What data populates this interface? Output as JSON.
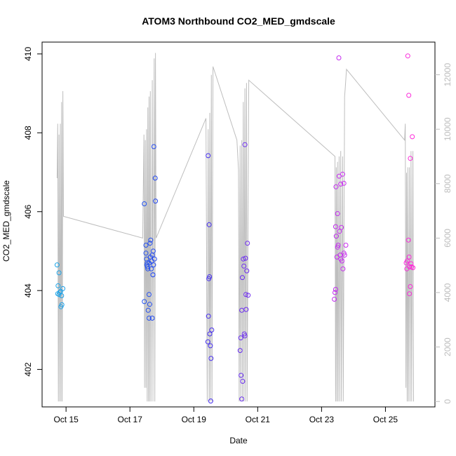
{
  "chart_data": {
    "type": "scatter",
    "title": "ATOM3 Northbound CO2_MED_gmdscale",
    "xlabel": "Date",
    "ylabel": "CO2_MED_gmdscale",
    "xlim": [
      14.25,
      26.55
    ],
    "ylim": [
      401.05,
      410.3
    ],
    "y2lim": [
      -200,
      13200
    ],
    "x_ticks": [
      15,
      17,
      19,
      21,
      23,
      25
    ],
    "x_tick_labels": [
      "Oct 15",
      "Oct 17",
      "Oct 19",
      "Oct 21",
      "Oct 23",
      "Oct 25"
    ],
    "y_ticks": [
      402,
      404,
      406,
      408,
      410
    ],
    "y_tick_labels": [
      "402",
      "404",
      "406",
      "408",
      "410"
    ],
    "y2_ticks": [
      0,
      2000,
      4000,
      6000,
      8000,
      10000,
      12000
    ],
    "y2_tick_labels": [
      "0",
      "2000",
      "4000",
      "6000",
      "8000",
      "10000",
      "12000"
    ],
    "colors": {
      "altitude_line": "#bebebe",
      "point_gradient": [
        "#1ea7e8",
        "#1a5cf0",
        "#3a2ef0",
        "#8a2cf0",
        "#c82cf0",
        "#ff2ad8"
      ]
    },
    "points": [
      {
        "x": 14.72,
        "y": 404.65
      },
      {
        "x": 14.75,
        "y": 404.12
      },
      {
        "x": 14.78,
        "y": 404.45
      },
      {
        "x": 14.74,
        "y": 403.92
      },
      {
        "x": 14.8,
        "y": 403.95
      },
      {
        "x": 14.83,
        "y": 403.98
      },
      {
        "x": 14.86,
        "y": 403.87
      },
      {
        "x": 14.9,
        "y": 404.05
      },
      {
        "x": 14.87,
        "y": 403.64
      },
      {
        "x": 14.84,
        "y": 403.59
      },
      {
        "x": 14.78,
        "y": 403.9
      },
      {
        "x": 17.45,
        "y": 406.2
      },
      {
        "x": 17.45,
        "y": 403.72
      },
      {
        "x": 17.5,
        "y": 405.15
      },
      {
        "x": 17.5,
        "y": 404.95
      },
      {
        "x": 17.52,
        "y": 404.8
      },
      {
        "x": 17.54,
        "y": 404.7
      },
      {
        "x": 17.55,
        "y": 404.6
      },
      {
        "x": 17.56,
        "y": 404.55
      },
      {
        "x": 17.53,
        "y": 404.65
      },
      {
        "x": 17.57,
        "y": 403.5
      },
      {
        "x": 17.6,
        "y": 403.9
      },
      {
        "x": 17.6,
        "y": 403.3
      },
      {
        "x": 17.62,
        "y": 403.65
      },
      {
        "x": 17.63,
        "y": 405.2
      },
      {
        "x": 17.65,
        "y": 405.28
      },
      {
        "x": 17.64,
        "y": 404.85
      },
      {
        "x": 17.67,
        "y": 404.55
      },
      {
        "x": 17.68,
        "y": 404.75
      },
      {
        "x": 17.7,
        "y": 404.9
      },
      {
        "x": 17.7,
        "y": 403.3
      },
      {
        "x": 17.72,
        "y": 404.4
      },
      {
        "x": 17.73,
        "y": 405.0
      },
      {
        "x": 17.74,
        "y": 404.65
      },
      {
        "x": 17.75,
        "y": 407.65
      },
      {
        "x": 17.77,
        "y": 404.8
      },
      {
        "x": 17.79,
        "y": 406.85
      },
      {
        "x": 17.8,
        "y": 406.27
      },
      {
        "x": 17.72,
        "y": 404.4
      },
      {
        "x": 17.6,
        "y": 404.7
      },
      {
        "x": 19.45,
        "y": 407.42
      },
      {
        "x": 19.47,
        "y": 404.3
      },
      {
        "x": 19.48,
        "y": 405.67
      },
      {
        "x": 19.49,
        "y": 404.35
      },
      {
        "x": 19.46,
        "y": 403.35
      },
      {
        "x": 19.44,
        "y": 402.7
      },
      {
        "x": 19.5,
        "y": 402.9
      },
      {
        "x": 19.52,
        "y": 402.6
      },
      {
        "x": 19.54,
        "y": 402.28
      },
      {
        "x": 19.56,
        "y": 403.0
      },
      {
        "x": 19.53,
        "y": 401.2
      },
      {
        "x": 20.45,
        "y": 402.48
      },
      {
        "x": 20.47,
        "y": 402.8
      },
      {
        "x": 20.48,
        "y": 401.85
      },
      {
        "x": 20.5,
        "y": 401.25
      },
      {
        "x": 20.5,
        "y": 403.5
      },
      {
        "x": 20.52,
        "y": 404.33
      },
      {
        "x": 20.53,
        "y": 401.7
      },
      {
        "x": 20.55,
        "y": 404.8
      },
      {
        "x": 20.57,
        "y": 404.62
      },
      {
        "x": 20.58,
        "y": 402.9
      },
      {
        "x": 20.6,
        "y": 402.85
      },
      {
        "x": 20.6,
        "y": 407.7
      },
      {
        "x": 20.62,
        "y": 404.82
      },
      {
        "x": 20.63,
        "y": 403.9
      },
      {
        "x": 20.64,
        "y": 403.52
      },
      {
        "x": 20.66,
        "y": 404.5
      },
      {
        "x": 20.68,
        "y": 405.2
      },
      {
        "x": 20.7,
        "y": 403.88
      },
      {
        "x": 23.4,
        "y": 403.78
      },
      {
        "x": 23.42,
        "y": 403.95
      },
      {
        "x": 23.44,
        "y": 404.03
      },
      {
        "x": 23.44,
        "y": 405.62
      },
      {
        "x": 23.45,
        "y": 406.63
      },
      {
        "x": 23.46,
        "y": 405.38
      },
      {
        "x": 23.48,
        "y": 404.85
      },
      {
        "x": 23.5,
        "y": 405.1
      },
      {
        "x": 23.5,
        "y": 405.95
      },
      {
        "x": 23.52,
        "y": 405.15
      },
      {
        "x": 23.54,
        "y": 409.9
      },
      {
        "x": 23.55,
        "y": 406.9
      },
      {
        "x": 23.56,
        "y": 405.5
      },
      {
        "x": 23.58,
        "y": 404.9
      },
      {
        "x": 23.6,
        "y": 404.8
      },
      {
        "x": 23.6,
        "y": 406.7
      },
      {
        "x": 23.62,
        "y": 405.6
      },
      {
        "x": 23.64,
        "y": 404.75
      },
      {
        "x": 23.66,
        "y": 406.95
      },
      {
        "x": 23.67,
        "y": 404.55
      },
      {
        "x": 23.7,
        "y": 404.95
      },
      {
        "x": 23.7,
        "y": 406.72
      },
      {
        "x": 23.72,
        "y": 404.9
      },
      {
        "x": 23.76,
        "y": 405.15
      },
      {
        "x": 25.65,
        "y": 404.7
      },
      {
        "x": 25.67,
        "y": 404.55
      },
      {
        "x": 25.68,
        "y": 404.75
      },
      {
        "x": 25.7,
        "y": 409.95
      },
      {
        "x": 25.72,
        "y": 405.28
      },
      {
        "x": 25.73,
        "y": 408.95
      },
      {
        "x": 25.74,
        "y": 404.85
      },
      {
        "x": 25.75,
        "y": 403.92
      },
      {
        "x": 25.76,
        "y": 404.6
      },
      {
        "x": 25.78,
        "y": 407.35
      },
      {
        "x": 25.78,
        "y": 404.1
      },
      {
        "x": 25.8,
        "y": 404.68
      },
      {
        "x": 25.82,
        "y": 404.6
      },
      {
        "x": 25.84,
        "y": 407.9
      },
      {
        "x": 25.86,
        "y": 404.58
      }
    ],
    "altitude": [
      {
        "x": 14.72,
        "y": 8200
      },
      {
        "x": 14.74,
        "y": 10200
      },
      {
        "x": 14.76,
        "y": 0
      },
      {
        "x": 14.78,
        "y": 9800
      },
      {
        "x": 14.8,
        "y": 0
      },
      {
        "x": 14.82,
        "y": 10200
      },
      {
        "x": 14.84,
        "y": 0
      },
      {
        "x": 14.86,
        "y": 11000
      },
      {
        "x": 14.88,
        "y": 0
      },
      {
        "x": 14.9,
        "y": 11400
      },
      {
        "x": 14.92,
        "y": 6800
      },
      {
        "x": 17.4,
        "y": 6000
      },
      {
        "x": 17.44,
        "y": 9800
      },
      {
        "x": 17.46,
        "y": 500
      },
      {
        "x": 17.48,
        "y": 9600
      },
      {
        "x": 17.5,
        "y": 500
      },
      {
        "x": 17.52,
        "y": 10000
      },
      {
        "x": 17.54,
        "y": 0
      },
      {
        "x": 17.56,
        "y": 10800
      },
      {
        "x": 17.58,
        "y": 0
      },
      {
        "x": 17.6,
        "y": 11200
      },
      {
        "x": 17.62,
        "y": 0
      },
      {
        "x": 17.64,
        "y": 11400
      },
      {
        "x": 17.66,
        "y": 0
      },
      {
        "x": 17.7,
        "y": 11800
      },
      {
        "x": 17.72,
        "y": 0
      },
      {
        "x": 17.76,
        "y": 12600
      },
      {
        "x": 17.78,
        "y": 0
      },
      {
        "x": 17.8,
        "y": 12800
      },
      {
        "x": 17.82,
        "y": 6000
      },
      {
        "x": 19.38,
        "y": 10400
      },
      {
        "x": 19.42,
        "y": 0
      },
      {
        "x": 19.45,
        "y": 10000
      },
      {
        "x": 19.48,
        "y": 0
      },
      {
        "x": 19.5,
        "y": 10600
      },
      {
        "x": 19.52,
        "y": 0
      },
      {
        "x": 19.55,
        "y": 12000
      },
      {
        "x": 19.57,
        "y": 0
      },
      {
        "x": 19.6,
        "y": 12300
      },
      {
        "x": 20.35,
        "y": 9600
      },
      {
        "x": 20.4,
        "y": 8500
      },
      {
        "x": 20.42,
        "y": 0
      },
      {
        "x": 20.45,
        "y": 9400
      },
      {
        "x": 20.47,
        "y": 0
      },
      {
        "x": 20.5,
        "y": 9600
      },
      {
        "x": 20.52,
        "y": 0
      },
      {
        "x": 20.55,
        "y": 11000
      },
      {
        "x": 20.57,
        "y": 0
      },
      {
        "x": 20.6,
        "y": 11500
      },
      {
        "x": 20.62,
        "y": 0
      },
      {
        "x": 20.65,
        "y": 11700
      },
      {
        "x": 20.67,
        "y": 0
      },
      {
        "x": 20.72,
        "y": 11800
      },
      {
        "x": 23.42,
        "y": 9000
      },
      {
        "x": 23.44,
        "y": 0
      },
      {
        "x": 23.46,
        "y": 8600
      },
      {
        "x": 23.48,
        "y": 0
      },
      {
        "x": 23.5,
        "y": 8800
      },
      {
        "x": 23.52,
        "y": 0
      },
      {
        "x": 23.55,
        "y": 9000
      },
      {
        "x": 23.57,
        "y": 0
      },
      {
        "x": 23.6,
        "y": 9200
      },
      {
        "x": 23.62,
        "y": 0
      },
      {
        "x": 23.66,
        "y": 9000
      },
      {
        "x": 23.68,
        "y": 0
      },
      {
        "x": 23.72,
        "y": 11200
      },
      {
        "x": 23.74,
        "y": 11500
      },
      {
        "x": 23.78,
        "y": 12200
      },
      {
        "x": 25.6,
        "y": 9600
      },
      {
        "x": 25.62,
        "y": 10200
      },
      {
        "x": 25.64,
        "y": 500
      },
      {
        "x": 25.66,
        "y": 8400
      },
      {
        "x": 25.68,
        "y": 0
      },
      {
        "x": 25.7,
        "y": 8600
      },
      {
        "x": 25.72,
        "y": 0
      },
      {
        "x": 25.75,
        "y": 8600
      },
      {
        "x": 25.77,
        "y": 0
      },
      {
        "x": 25.8,
        "y": 9200
      },
      {
        "x": 25.82,
        "y": 0
      },
      {
        "x": 25.86,
        "y": 9200
      },
      {
        "x": 25.88,
        "y": 0
      }
    ]
  }
}
